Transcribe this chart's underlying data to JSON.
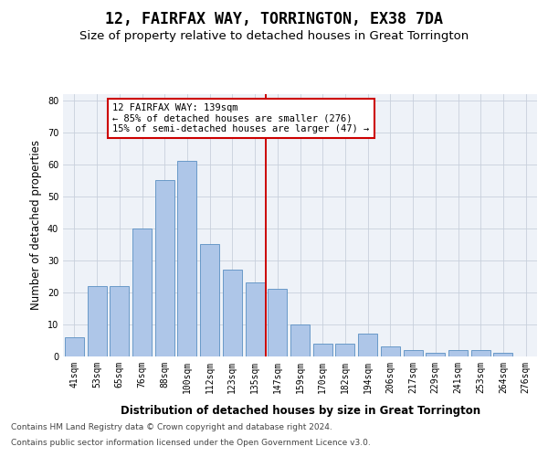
{
  "title": "12, FAIRFAX WAY, TORRINGTON, EX38 7DA",
  "subtitle": "Size of property relative to detached houses in Great Torrington",
  "xlabel": "Distribution of detached houses by size in Great Torrington",
  "ylabel": "Number of detached properties",
  "categories": [
    "41sqm",
    "53sqm",
    "65sqm",
    "76sqm",
    "88sqm",
    "100sqm",
    "112sqm",
    "123sqm",
    "135sqm",
    "147sqm",
    "159sqm",
    "170sqm",
    "182sqm",
    "194sqm",
    "206sqm",
    "217sqm",
    "229sqm",
    "241sqm",
    "253sqm",
    "264sqm",
    "276sqm"
  ],
  "values": [
    6,
    22,
    22,
    40,
    55,
    61,
    35,
    27,
    23,
    21,
    10,
    4,
    4,
    7,
    3,
    2,
    1,
    2,
    2,
    1,
    0
  ],
  "bar_color": "#aec6e8",
  "bar_edge_color": "#5a8fc2",
  "vline_index": 8.5,
  "vline_color": "#cc0000",
  "annotation_text": "12 FAIRFAX WAY: 139sqm\n← 85% of detached houses are smaller (276)\n15% of semi-detached houses are larger (47) →",
  "annotation_box_color": "#ffffff",
  "annotation_box_edge_color": "#cc0000",
  "ylim": [
    0,
    82
  ],
  "yticks": [
    0,
    10,
    20,
    30,
    40,
    50,
    60,
    70,
    80
  ],
  "grid_color": "#c8d0dc",
  "background_color": "#eef2f8",
  "footer_line1": "Contains HM Land Registry data © Crown copyright and database right 2024.",
  "footer_line2": "Contains public sector information licensed under the Open Government Licence v3.0.",
  "title_fontsize": 12,
  "subtitle_fontsize": 9.5,
  "xlabel_fontsize": 8.5,
  "ylabel_fontsize": 8.5,
  "tick_fontsize": 7,
  "annotation_fontsize": 7.5,
  "footer_fontsize": 6.5
}
